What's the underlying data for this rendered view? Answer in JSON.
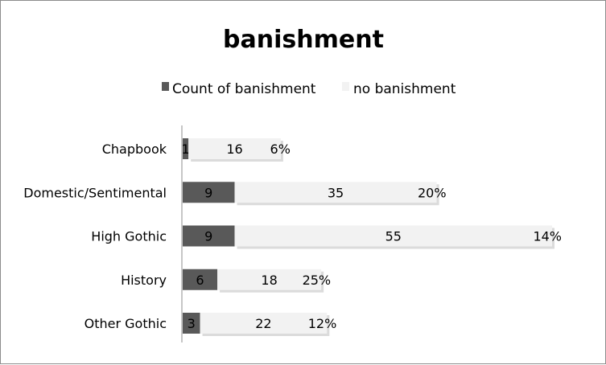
{
  "chart_data": {
    "type": "bar",
    "orientation": "horizontal",
    "stacked": true,
    "title": "banishment",
    "legend_position": "top",
    "categories": [
      "Chapbook",
      "Domestic/Sentimental",
      "High Gothic",
      "History",
      "Other Gothic"
    ],
    "series": [
      {
        "name": "Count of banishment",
        "values": [
          1,
          9,
          9,
          6,
          3
        ],
        "color": "#595959"
      },
      {
        "name": "no banishment",
        "values": [
          16,
          35,
          55,
          18,
          22
        ],
        "color": "#f2f2f2"
      }
    ],
    "percent_labels": [
      "6%",
      "20%",
      "14%",
      "25%",
      "12%"
    ],
    "xlim": [
      0,
      64
    ],
    "grid": false
  }
}
